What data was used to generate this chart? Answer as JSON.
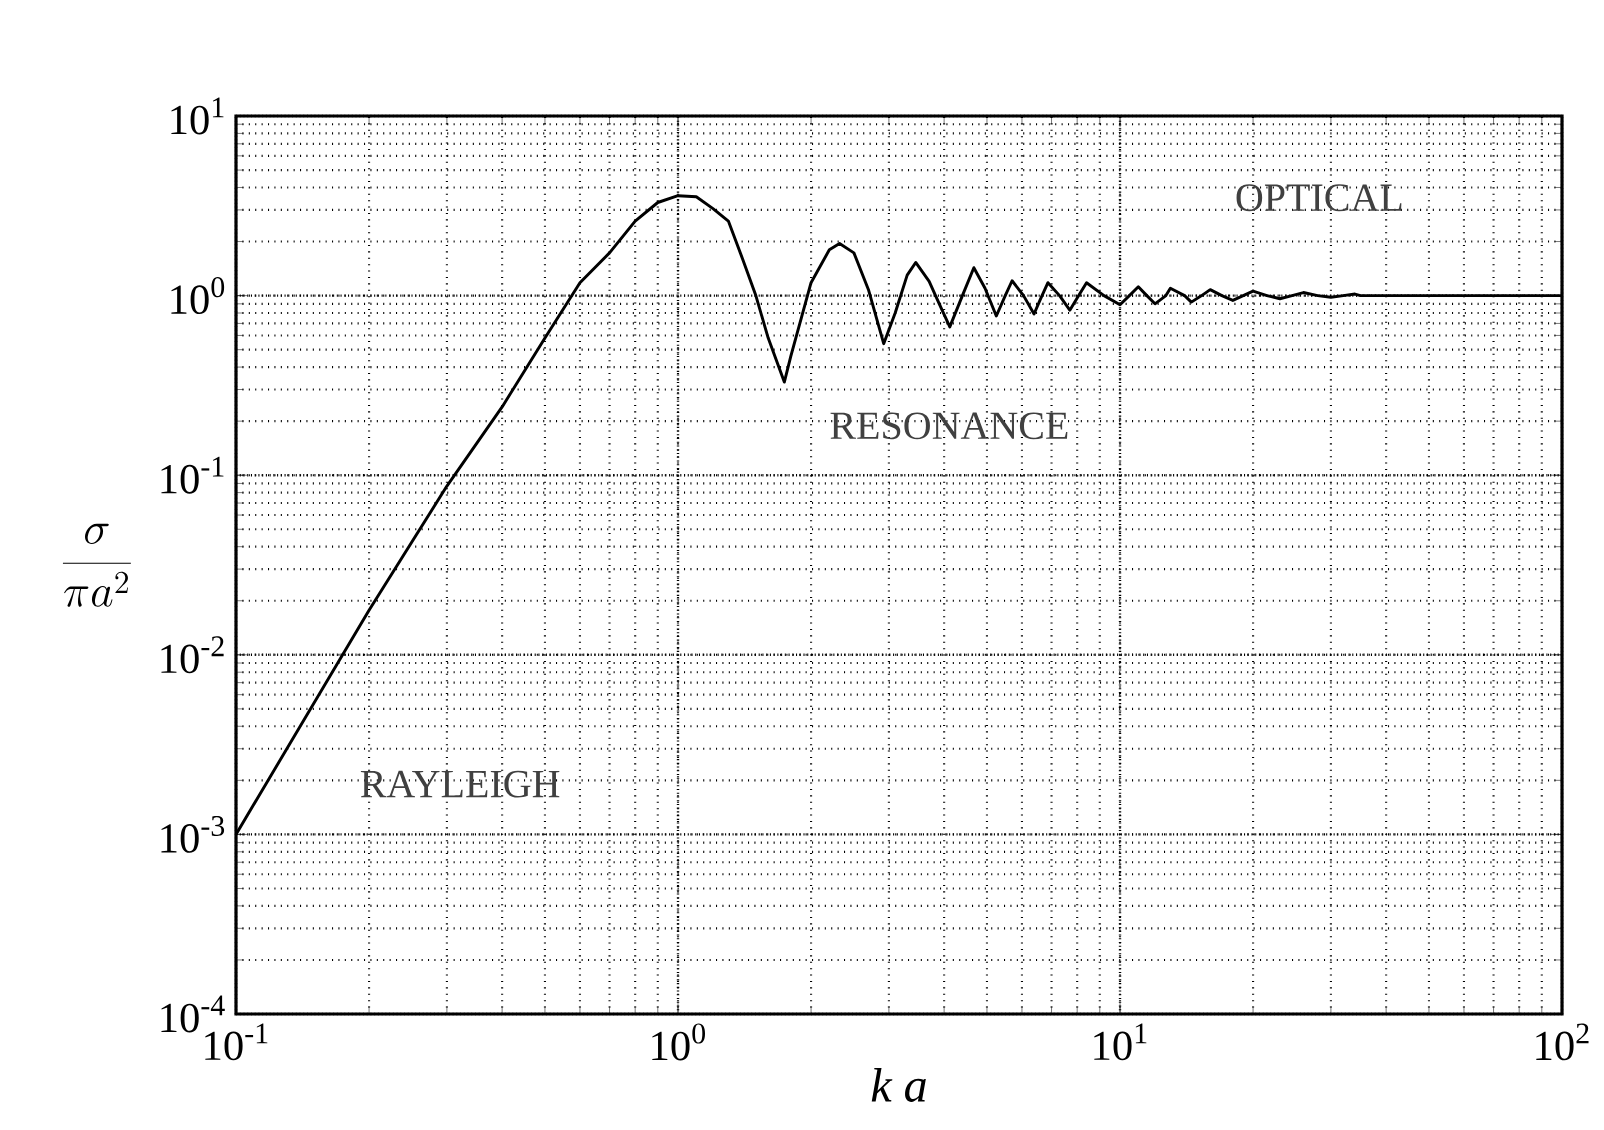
{
  "chart_data": {
    "type": "line",
    "xlabel": "*k a*",
    "ylabel": "\\frac{\\sigma}{\\pi a^{2}}",
    "log": "xy",
    "grid": true,
    "line_style": "solid",
    "marker": "none",
    "xlim": [
      0.1,
      100
    ],
    "ylim": [
      0.0001,
      10
    ],
    "xticks": [
      {
        "value": 0.1,
        "label": "10$^{-1}$"
      },
      {
        "value": 1,
        "label": "10$^{0}$"
      },
      {
        "value": 10,
        "label": "10$^{1}$"
      },
      {
        "value": 100,
        "label": "10$^{2}$"
      }
    ],
    "yticks": [
      {
        "value": 0.0001,
        "label": "10$^{-4}$"
      },
      {
        "value": 0.001,
        "label": "10$^{-3}$"
      },
      {
        "value": 0.01,
        "label": "10$^{-2}$"
      },
      {
        "value": 0.1,
        "label": "10$^{-1}$"
      },
      {
        "value": 1,
        "label": "10$^{0}$"
      },
      {
        "value": 10,
        "label": "10$^{1}$"
      }
    ],
    "annotations": [
      "RAYLEIGH",
      "RESONANCE",
      "OPTICAL"
    ],
    "series": [
      {
        "color": "#000000",
        "x": [
          0.1,
          0.2,
          0.3,
          0.4,
          0.5,
          0.6,
          0.7,
          0.8,
          0.9,
          1.0,
          1.1,
          1.2,
          1.3,
          1.4,
          1.5,
          1.6,
          1.74,
          1.8,
          2.0,
          2.2,
          2.32,
          2.5,
          2.7,
          2.92,
          3.1,
          3.3,
          3.45,
          3.7,
          3.9,
          4.12,
          4.4,
          4.67,
          4.95,
          5.25,
          5.5,
          5.7,
          6.05,
          6.39,
          6.6,
          6.87,
          7.3,
          7.7,
          8.0,
          8.4,
          9.2,
          10,
          10.5,
          11,
          11.5,
          12,
          12.7,
          13,
          14,
          14.5,
          15.3,
          16,
          17,
          18,
          19,
          20,
          21.5,
          23,
          24.5,
          26,
          28,
          30,
          32,
          34,
          35,
          100
        ],
        "values": [
          0.001,
          0.0177,
          0.087,
          0.24,
          0.58,
          1.18,
          1.73,
          2.6,
          3.3,
          3.6,
          3.55,
          3.05,
          2.6,
          1.6,
          1.0,
          0.58,
          0.33,
          0.46,
          1.18,
          1.8,
          1.95,
          1.73,
          1.07,
          0.54,
          0.8,
          1.3,
          1.53,
          1.2,
          0.9,
          0.67,
          1.0,
          1.43,
          1.1,
          0.77,
          1.0,
          1.21,
          1.0,
          0.79,
          0.95,
          1.18,
          1.0,
          0.83,
          0.97,
          1.18,
          1.0,
          0.89,
          1.0,
          1.12,
          1.0,
          0.9,
          1.0,
          1.1,
          1.0,
          0.92,
          1.0,
          1.08,
          1.0,
          0.94,
          1.0,
          1.06,
          1.0,
          0.96,
          1.0,
          1.04,
          1.0,
          0.98,
          1.0,
          1.02,
          1.0,
          1.0
        ]
      }
    ]
  }
}
